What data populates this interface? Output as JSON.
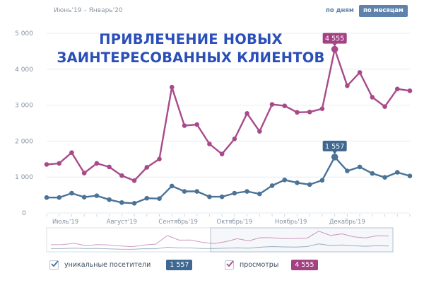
{
  "header": {
    "range_label": "Июнь'19 – Январь'20",
    "toggle_days": "по дням",
    "toggle_months": "по месяцам"
  },
  "headline": {
    "line1": "ПРИВЛЕЧЕНИЕ НОВЫХ",
    "line2": "ЗАИНТЕРЕСОВАННЫХ КЛИЕНТОВ"
  },
  "colors": {
    "views": "#a84a8a",
    "visitors": "#4a7396",
    "badge_visitors": "#3e6891",
    "badge_views": "#a44182",
    "grid": "#e6ecf1",
    "axis_text": "#8591a0"
  },
  "chart_data": {
    "type": "line",
    "ylim": [
      0,
      5000
    ],
    "yticks": [
      {
        "value": 0,
        "label": "0"
      },
      {
        "value": 1000,
        "label": "1 000"
      },
      {
        "value": 2000,
        "label": "2 000"
      },
      {
        "value": 3000,
        "label": "3 000"
      },
      {
        "value": 4000,
        "label": "4 000"
      },
      {
        "value": 5000,
        "label": "5 000"
      }
    ],
    "x_month_labels": [
      {
        "at_week": 1.5,
        "label": "Июль'19"
      },
      {
        "at_week": 6,
        "label": "Август'19"
      },
      {
        "at_week": 10.5,
        "label": "Сентябрь'19"
      },
      {
        "at_week": 15,
        "label": "Октябрь'19"
      },
      {
        "at_week": 19.5,
        "label": "Ноябрь'19"
      },
      {
        "at_week": 24,
        "label": "Декабрь'19"
      }
    ],
    "x": [
      0,
      1,
      2,
      3,
      4,
      5,
      6,
      7,
      8,
      9,
      10,
      11,
      12,
      13,
      14,
      15,
      16,
      17,
      18,
      19,
      20,
      21,
      22,
      23,
      24,
      25,
      26,
      27,
      28,
      29
    ],
    "series": [
      {
        "name": "просмотры",
        "color": "#a84a8a",
        "values": [
          1350,
          1380,
          1680,
          1110,
          1380,
          1280,
          1040,
          900,
          1270,
          1500,
          3500,
          2430,
          2460,
          1920,
          1640,
          2060,
          2770,
          2270,
          3020,
          2980,
          2800,
          2810,
          2900,
          4555,
          3540,
          3910,
          3220,
          2960,
          3450,
          3400
        ]
      },
      {
        "name": "уникальные посетители",
        "color": "#4a7396",
        "values": [
          430,
          430,
          550,
          440,
          480,
          370,
          290,
          270,
          410,
          400,
          750,
          600,
          600,
          450,
          450,
          550,
          600,
          530,
          760,
          920,
          840,
          790,
          910,
          1557,
          1170,
          1280,
          1100,
          990,
          1130,
          1030
        ]
      }
    ],
    "peak_labels": [
      {
        "series": "просмотры",
        "index": 23,
        "label": "4 555"
      },
      {
        "series": "уникальные посетители",
        "index": 23,
        "label": "1 557"
      }
    ]
  },
  "legend": {
    "visitors": {
      "label": "уникальные посетители",
      "value": "1 557"
    },
    "views": {
      "label": "просмотры",
      "value": "4 555"
    }
  }
}
